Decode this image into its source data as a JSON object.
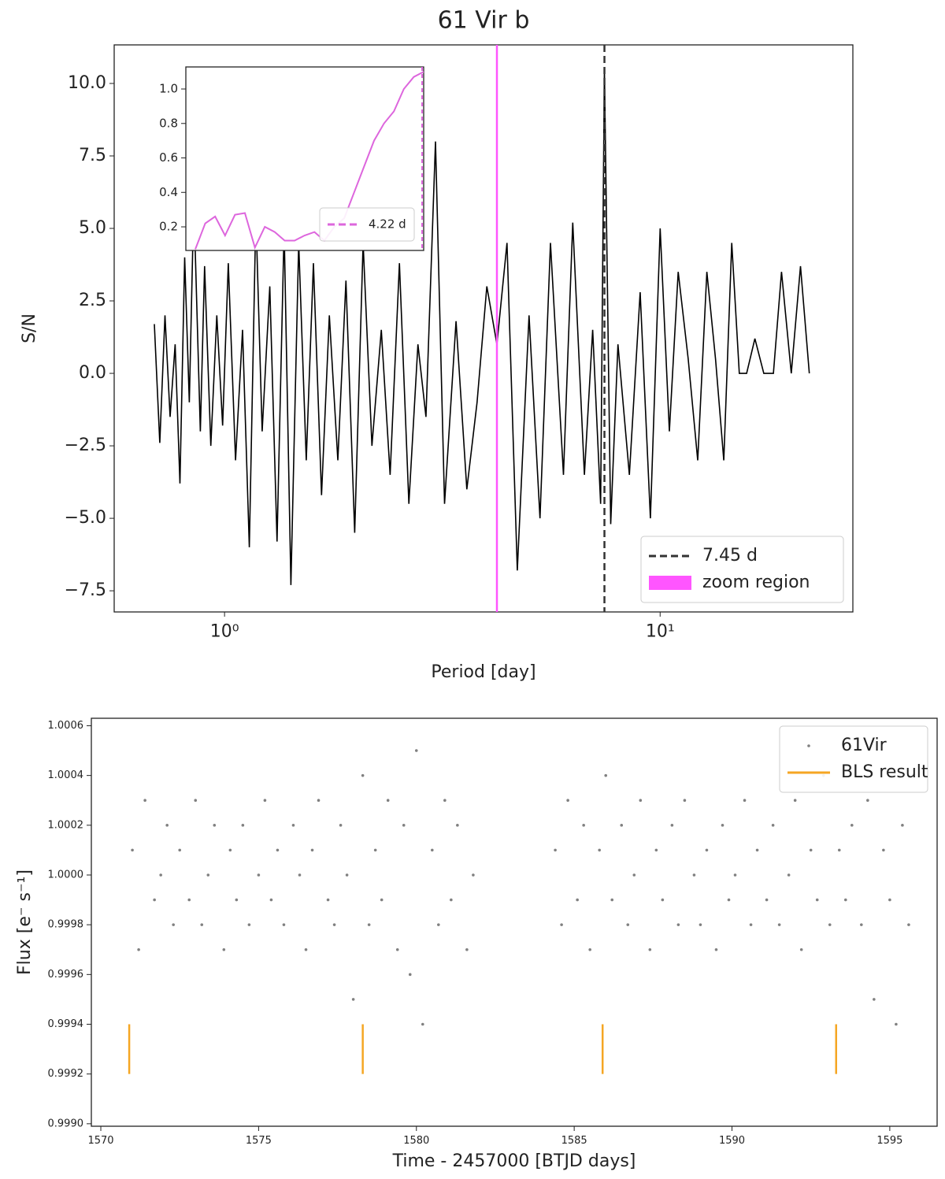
{
  "chart_data": [
    {
      "type": "line",
      "title": "61 Vir b",
      "xlabel": "Period [day]",
      "ylabel": "S/N",
      "xscale": "log",
      "xlim": [
        0.558,
        27.7
      ],
      "ylim": [
        -8.23,
        11.33
      ],
      "xticks": [
        {
          "value": 1,
          "label": "10⁰"
        },
        {
          "value": 10,
          "label": "10¹"
        }
      ],
      "yticks": [
        {
          "value": -7.5,
          "label": "−7.5"
        },
        {
          "value": -5,
          "label": "−5.0"
        },
        {
          "value": -2.5,
          "label": "−2.5"
        },
        {
          "value": 0,
          "label": "0.0"
        },
        2.5,
        {
          "value": 5,
          "label": "5.0"
        },
        7.5,
        {
          "value": 10,
          "label": "10.0"
        }
      ],
      "series": [
        {
          "color": "#000000",
          "x": [
            0.69,
            0.71,
            0.73,
            0.75,
            0.77,
            0.79,
            0.81,
            0.83,
            0.85,
            0.88,
            0.9,
            0.93,
            0.96,
            0.99,
            1.02,
            1.06,
            1.1,
            1.14,
            1.18,
            1.22,
            1.27,
            1.32,
            1.37,
            1.42,
            1.48,
            1.54,
            1.6,
            1.67,
            1.74,
            1.82,
            1.9,
            1.99,
            2.08,
            2.18,
            2.29,
            2.4,
            2.52,
            2.65,
            2.78,
            2.9,
            3.05,
            3.2,
            3.4,
            3.6,
            3.8,
            4.0,
            4.22,
            4.45,
            4.7,
            5.0,
            5.3,
            5.6,
            6.0,
            6.3,
            6.7,
            7.0,
            7.3,
            7.45,
            7.7,
            8.0,
            8.5,
            9.0,
            9.5,
            10.0,
            10.5,
            11.0,
            11.6,
            12.2,
            12.8,
            13.4,
            14.0,
            14.6,
            15.2,
            15.8,
            16.5,
            17.3,
            18.2,
            19.0,
            20.0,
            21.0,
            22.0
          ],
          "values": [
            1.7,
            -2.4,
            2.0,
            -1.5,
            1.0,
            -3.8,
            4.0,
            -1.0,
            6.0,
            -2.0,
            3.7,
            -2.5,
            2.0,
            -1.8,
            3.8,
            -3.0,
            1.5,
            -6.0,
            5.5,
            -2.0,
            3.0,
            -5.8,
            5.0,
            -7.3,
            4.5,
            -3.0,
            3.8,
            -4.2,
            2.0,
            -3.0,
            3.2,
            -5.5,
            4.5,
            -2.5,
            1.5,
            -3.5,
            3.8,
            -4.5,
            1.0,
            -1.5,
            8.0,
            -4.5,
            1.8,
            -4.0,
            -1.0,
            3.0,
            1.0,
            4.5,
            -6.8,
            2.0,
            -5.0,
            4.5,
            -3.5,
            5.2,
            -3.5,
            1.5,
            -4.5,
            10.5,
            -5.2,
            1.0,
            -3.5,
            2.8,
            -5.0,
            5.0,
            -2.0,
            3.5,
            0.5,
            -3.0,
            3.5,
            0.5,
            -3.0,
            4.5,
            0.0,
            0.0,
            1.2,
            0.0,
            0.0,
            3.5,
            0.0,
            3.7,
            0.0
          ]
        }
      ],
      "vlines": [
        {
          "name": "7.45 d",
          "x": 7.45,
          "color": "#333333",
          "style": "dashed"
        },
        {
          "name": "zoom region",
          "x": 4.22,
          "color": "#ff55ff",
          "style": "solid"
        }
      ],
      "legend": "lower right"
    },
    {
      "type": "line",
      "ylim": [
        0.063,
        1.128
      ],
      "yticks": [
        0.2,
        0.4,
        0.6,
        0.8,
        {
          "value": 1,
          "label": "1.0"
        }
      ],
      "series": [
        {
          "name": "4.22 d",
          "color": "#dd66dd",
          "style": "dashed",
          "values": [
            0.07,
            0.22,
            0.26,
            0.15,
            0.27,
            0.28,
            0.08,
            0.2,
            0.17,
            0.12,
            0.12,
            0.15,
            0.17,
            0.12,
            0.2,
            0.25,
            0.4,
            0.55,
            0.7,
            0.8,
            0.87,
            1.0,
            1.07,
            1.1
          ]
        }
      ],
      "legend": "lower right"
    },
    {
      "type": "scatter",
      "xlabel": "Time - 2457000 [BTJD days]",
      "ylabel": "Flux [e⁻ s⁻¹]",
      "xlim": [
        1569.7,
        1596.5
      ],
      "ylim": [
        0.99899,
        1.00063
      ],
      "xticks": [
        1570,
        1575,
        1580,
        1585,
        1590,
        1595
      ],
      "yticks": [
        {
          "value": 0.999,
          "label": "0.9990"
        },
        0.9992,
        0.9994,
        0.9996,
        0.9998,
        {
          "value": 1,
          "label": "1.0000"
        },
        1.0002,
        1.0004,
        1.0006
      ],
      "series": [
        {
          "name": "61Vir",
          "color": "#808080",
          "x": [
            1571.0,
            1571.2,
            1571.4,
            1571.7,
            1571.9,
            1572.1,
            1572.3,
            1572.5,
            1572.8,
            1573.0,
            1573.2,
            1573.4,
            1573.6,
            1573.9,
            1574.1,
            1574.3,
            1574.5,
            1574.7,
            1575.0,
            1575.2,
            1575.4,
            1575.6,
            1575.8,
            1576.1,
            1576.3,
            1576.5,
            1576.7,
            1576.9,
            1577.2,
            1577.4,
            1577.6,
            1577.8,
            1578.0,
            1578.3,
            1578.5,
            1578.7,
            1578.9,
            1579.1,
            1579.4,
            1579.6,
            1579.8,
            1580.0,
            1580.2,
            1580.5,
            1580.7,
            1580.9,
            1581.1,
            1581.3,
            1581.6,
            1581.8,
            1584.4,
            1584.6,
            1584.8,
            1585.1,
            1585.3,
            1585.5,
            1585.8,
            1586.0,
            1586.2,
            1586.5,
            1586.7,
            1586.9,
            1587.1,
            1587.4,
            1587.6,
            1587.8,
            1588.1,
            1588.3,
            1588.5,
            1588.8,
            1589.0,
            1589.2,
            1589.5,
            1589.7,
            1589.9,
            1590.1,
            1590.4,
            1590.6,
            1590.8,
            1591.1,
            1591.3,
            1591.5,
            1591.8,
            1592.0,
            1592.2,
            1592.5,
            1592.7,
            1592.9,
            1593.1,
            1593.4,
            1593.6,
            1593.8,
            1594.1,
            1594.3,
            1594.5,
            1594.8,
            1595.0,
            1595.2,
            1595.4,
            1595.6
          ],
          "values": [
            1.0001,
            0.9997,
            1.0003,
            0.9999,
            1.0,
            1.0002,
            0.9998,
            1.0001,
            0.9999,
            1.0003,
            0.9998,
            1.0,
            1.0002,
            0.9997,
            1.0001,
            0.9999,
            1.0002,
            0.9998,
            1.0,
            1.0003,
            0.9999,
            1.0001,
            0.9998,
            1.0002,
            1.0,
            0.9997,
            1.0001,
            1.0003,
            0.9999,
            0.9998,
            1.0002,
            1.0,
            0.9995,
            1.0004,
            0.9998,
            1.0001,
            0.9999,
            1.0003,
            0.9997,
            1.0002,
            0.9996,
            1.0005,
            0.9994,
            1.0001,
            0.9998,
            1.0003,
            0.9999,
            1.0002,
            0.9997,
            1.0,
            1.0001,
            0.9998,
            1.0003,
            0.9999,
            1.0002,
            0.9997,
            1.0001,
            1.0004,
            0.9999,
            1.0002,
            0.9998,
            1.0,
            1.0003,
            0.9997,
            1.0001,
            0.9999,
            1.0002,
            0.9998,
            1.0003,
            1.0,
            0.9998,
            1.0001,
            0.9997,
            1.0002,
            0.9999,
            1.0,
            1.0003,
            0.9998,
            1.0001,
            0.9999,
            1.0002,
            0.9998,
            1.0,
            1.0003,
            0.9997,
            1.0001,
            0.9999,
            1.0004,
            0.9998,
            1.0001,
            0.9999,
            1.0002,
            0.9998,
            1.0003,
            0.9995,
            1.0001,
            0.9999,
            0.9994,
            1.0002,
            0.9998
          ]
        }
      ],
      "bls": {
        "name": "BLS result",
        "color": "#f5a623",
        "x": [
          1570.9,
          1578.3,
          1585.9,
          1593.3
        ],
        "ymin": 0.9992,
        "ymax": 0.9994
      },
      "legend": "upper right"
    }
  ]
}
